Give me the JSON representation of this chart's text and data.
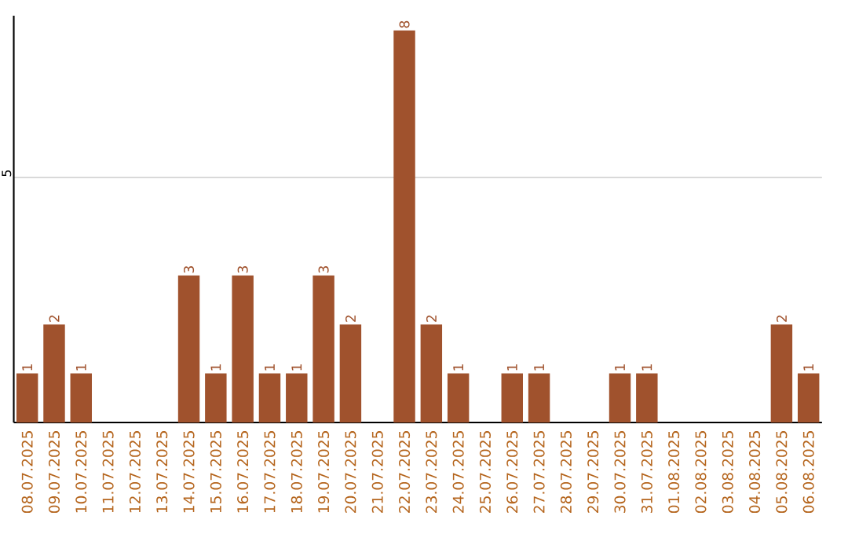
{
  "chart_data": {
    "type": "bar",
    "categories": [
      "08.07.2025",
      "09.07.2025",
      "10.07.2025",
      "11.07.2025",
      "12.07.2025",
      "13.07.2025",
      "14.07.2025",
      "15.07.2025",
      "16.07.2025",
      "17.07.2025",
      "18.07.2025",
      "19.07.2025",
      "20.07.2025",
      "21.07.2025",
      "22.07.2025",
      "23.07.2025",
      "24.07.2025",
      "25.07.2025",
      "26.07.2025",
      "27.07.2025",
      "28.07.2025",
      "29.07.2025",
      "30.07.2025",
      "31.07.2025",
      "01.08.2025",
      "02.08.2025",
      "03.08.2025",
      "04.08.2025",
      "05.08.2025",
      "06.08.2025"
    ],
    "values": [
      1,
      2,
      1,
      0,
      0,
      0,
      3,
      1,
      3,
      1,
      1,
      3,
      2,
      0,
      8,
      2,
      1,
      0,
      1,
      1,
      0,
      0,
      1,
      1,
      0,
      0,
      0,
      0,
      2,
      1
    ],
    "value_labels": [
      "1",
      "2",
      "1",
      null,
      null,
      null,
      "3",
      "1",
      "3",
      "1",
      "1",
      "3",
      "2",
      null,
      "8",
      "2",
      "1",
      null,
      "1",
      "1",
      null,
      null,
      "1",
      "1",
      null,
      null,
      null,
      null,
      "2",
      "1"
    ],
    "color": "#a0522d",
    "ylim": [
      0,
      8.3
    ],
    "yticks": [
      5
    ],
    "grid": "y"
  }
}
